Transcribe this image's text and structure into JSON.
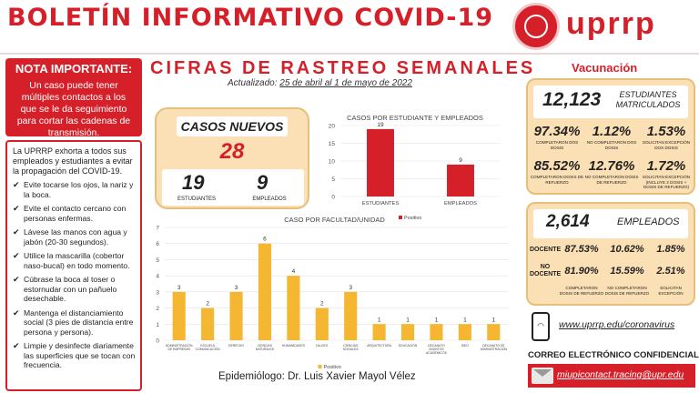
{
  "header": {
    "title": "BOLETÍN INFORMATIVO COVID-19",
    "logo_text": "uprrp"
  },
  "nota": {
    "title": "NOTA IMPORTANTE:",
    "body": "Un caso puede tener múltiples contactos a los que se le da seguimiento para cortar las cadenas de transmisión."
  },
  "tips": {
    "intro": "La UPRRP exhorta a todos sus empleados y estudiantes a evitar la propagación del COVID-19.",
    "items": [
      "Evite tocarse los ojos, la nariz y la boca.",
      "Evite el contacto cercano con personas enfermas.",
      "Lávese las manos con agua y jabón (20-30 segundos).",
      "Utilice la mascarilla (cobertor naso-bucal) en todo momento.",
      "Cúbrase la boca al toser o estornudar con un pañuelo desechable.",
      "Mantenga el distanciamiento social (3 pies de distancia entre persona y persona).",
      "Limpie y desinfecte diariamente las superficies que se tocan con frecuencia."
    ],
    "check_glyph": "✔"
  },
  "center": {
    "heading": "CIFRAS DE RASTREO SEMANALES",
    "updated_prefix": "Actualizado: ",
    "updated_range": "25 de abril al 1 de mayo de 2022"
  },
  "casos": {
    "title": "CASOS NUEVOS",
    "total": "28",
    "estudiantes": "19",
    "estudiantes_label": "ESTUDIANTES",
    "empleados": "9",
    "empleados_label": "EMPLEADOS"
  },
  "chart_data": [
    {
      "type": "bar",
      "title": "CASOS POR ESTUDIANTE Y EMPLEADOS",
      "categories": [
        "ESTUDIANTES",
        "EMPLEADOS"
      ],
      "series": [
        {
          "name": "Positivo",
          "values": [
            19,
            9
          ]
        }
      ],
      "ylim": [
        0,
        20
      ],
      "yticks": [
        0,
        5,
        10,
        15,
        20
      ],
      "grid": true,
      "legend": "bottom",
      "color": "#d5202a"
    },
    {
      "type": "bar",
      "title": "CASO POR FACULTAD/UNIDAD",
      "categories": [
        "ADMINISTRACIÓN DE EMPRESAS",
        "ESCUELA COMUNICACIÓN",
        "DERECHO",
        "CIENCIAS NATURALES",
        "HUMANIDADES",
        "DA-DEG",
        "CIENCIAS SOCIALES",
        "ARQUITECTURA",
        "EDUCACIÓN",
        "DECANATO ASUNTOS ACADÉMICOS",
        "SIEU",
        "DECANATO DE ADMINISTRACIÓN"
      ],
      "series": [
        {
          "name": "Positivo",
          "values": [
            3,
            2,
            3,
            6,
            4,
            2,
            3,
            1,
            1,
            1,
            1,
            1
          ]
        }
      ],
      "ylim": [
        0,
        7
      ],
      "yticks": [
        0,
        1,
        2,
        3,
        4,
        5,
        6,
        7
      ],
      "grid": true,
      "legend": "bottom",
      "color": "#f5b731"
    }
  ],
  "epidemiologo": "Epidemiólogo: Dr. Luis Xavier Mayol Vélez",
  "vacunacion": {
    "title": "Vacunación",
    "estudiantes_total": "12,123",
    "estudiantes_label": "ESTUDIANTES MATRICULADOS",
    "est_stats": [
      {
        "value": "97.34%",
        "label": "COMPLETARON DOS DOSIS"
      },
      {
        "value": "1.12%",
        "label": "NO COMPLETARON DOS DOSIS"
      },
      {
        "value": "1.53%",
        "label": "SOLICITAN EXCEPCIÓN DOS DOSIS"
      },
      {
        "value": "85.52%",
        "label": "COMPLETARON DOSIS DE REFUERZO"
      },
      {
        "value": "12.76%",
        "label": "NO COMPLETARON DOSIS DE REFUERZO"
      },
      {
        "value": "1.72%",
        "label": "SOLICITAN EXCEPCIÓN (INCLUYE 2 DOSIS + DOSIS DE REFUERZO)"
      }
    ],
    "empleados_total": "2,614",
    "empleados_label": "EMPLEADOS",
    "docente_label": "DOCENTE",
    "docente_stats": [
      "87.53%",
      "10.62%",
      "1.85%"
    ],
    "no_docente_label": "NO DOCENTE",
    "no_docente_stats": [
      "81.90%",
      "15.59%",
      "2.51%"
    ],
    "emp_labels": [
      "COMPLETARON DOSIS DE REFUERZO",
      "NO COMPLETARON DOSIS DE REFUERZO",
      "SOLICITAN EXCEPCIÓN"
    ]
  },
  "contact": {
    "web": "www.uprrp.edu/coronavirus",
    "correo_title": "CORREO ELECTRÓNICO CONFIDENCIAL",
    "email": "miupicontact.tracing@upr.edu"
  }
}
